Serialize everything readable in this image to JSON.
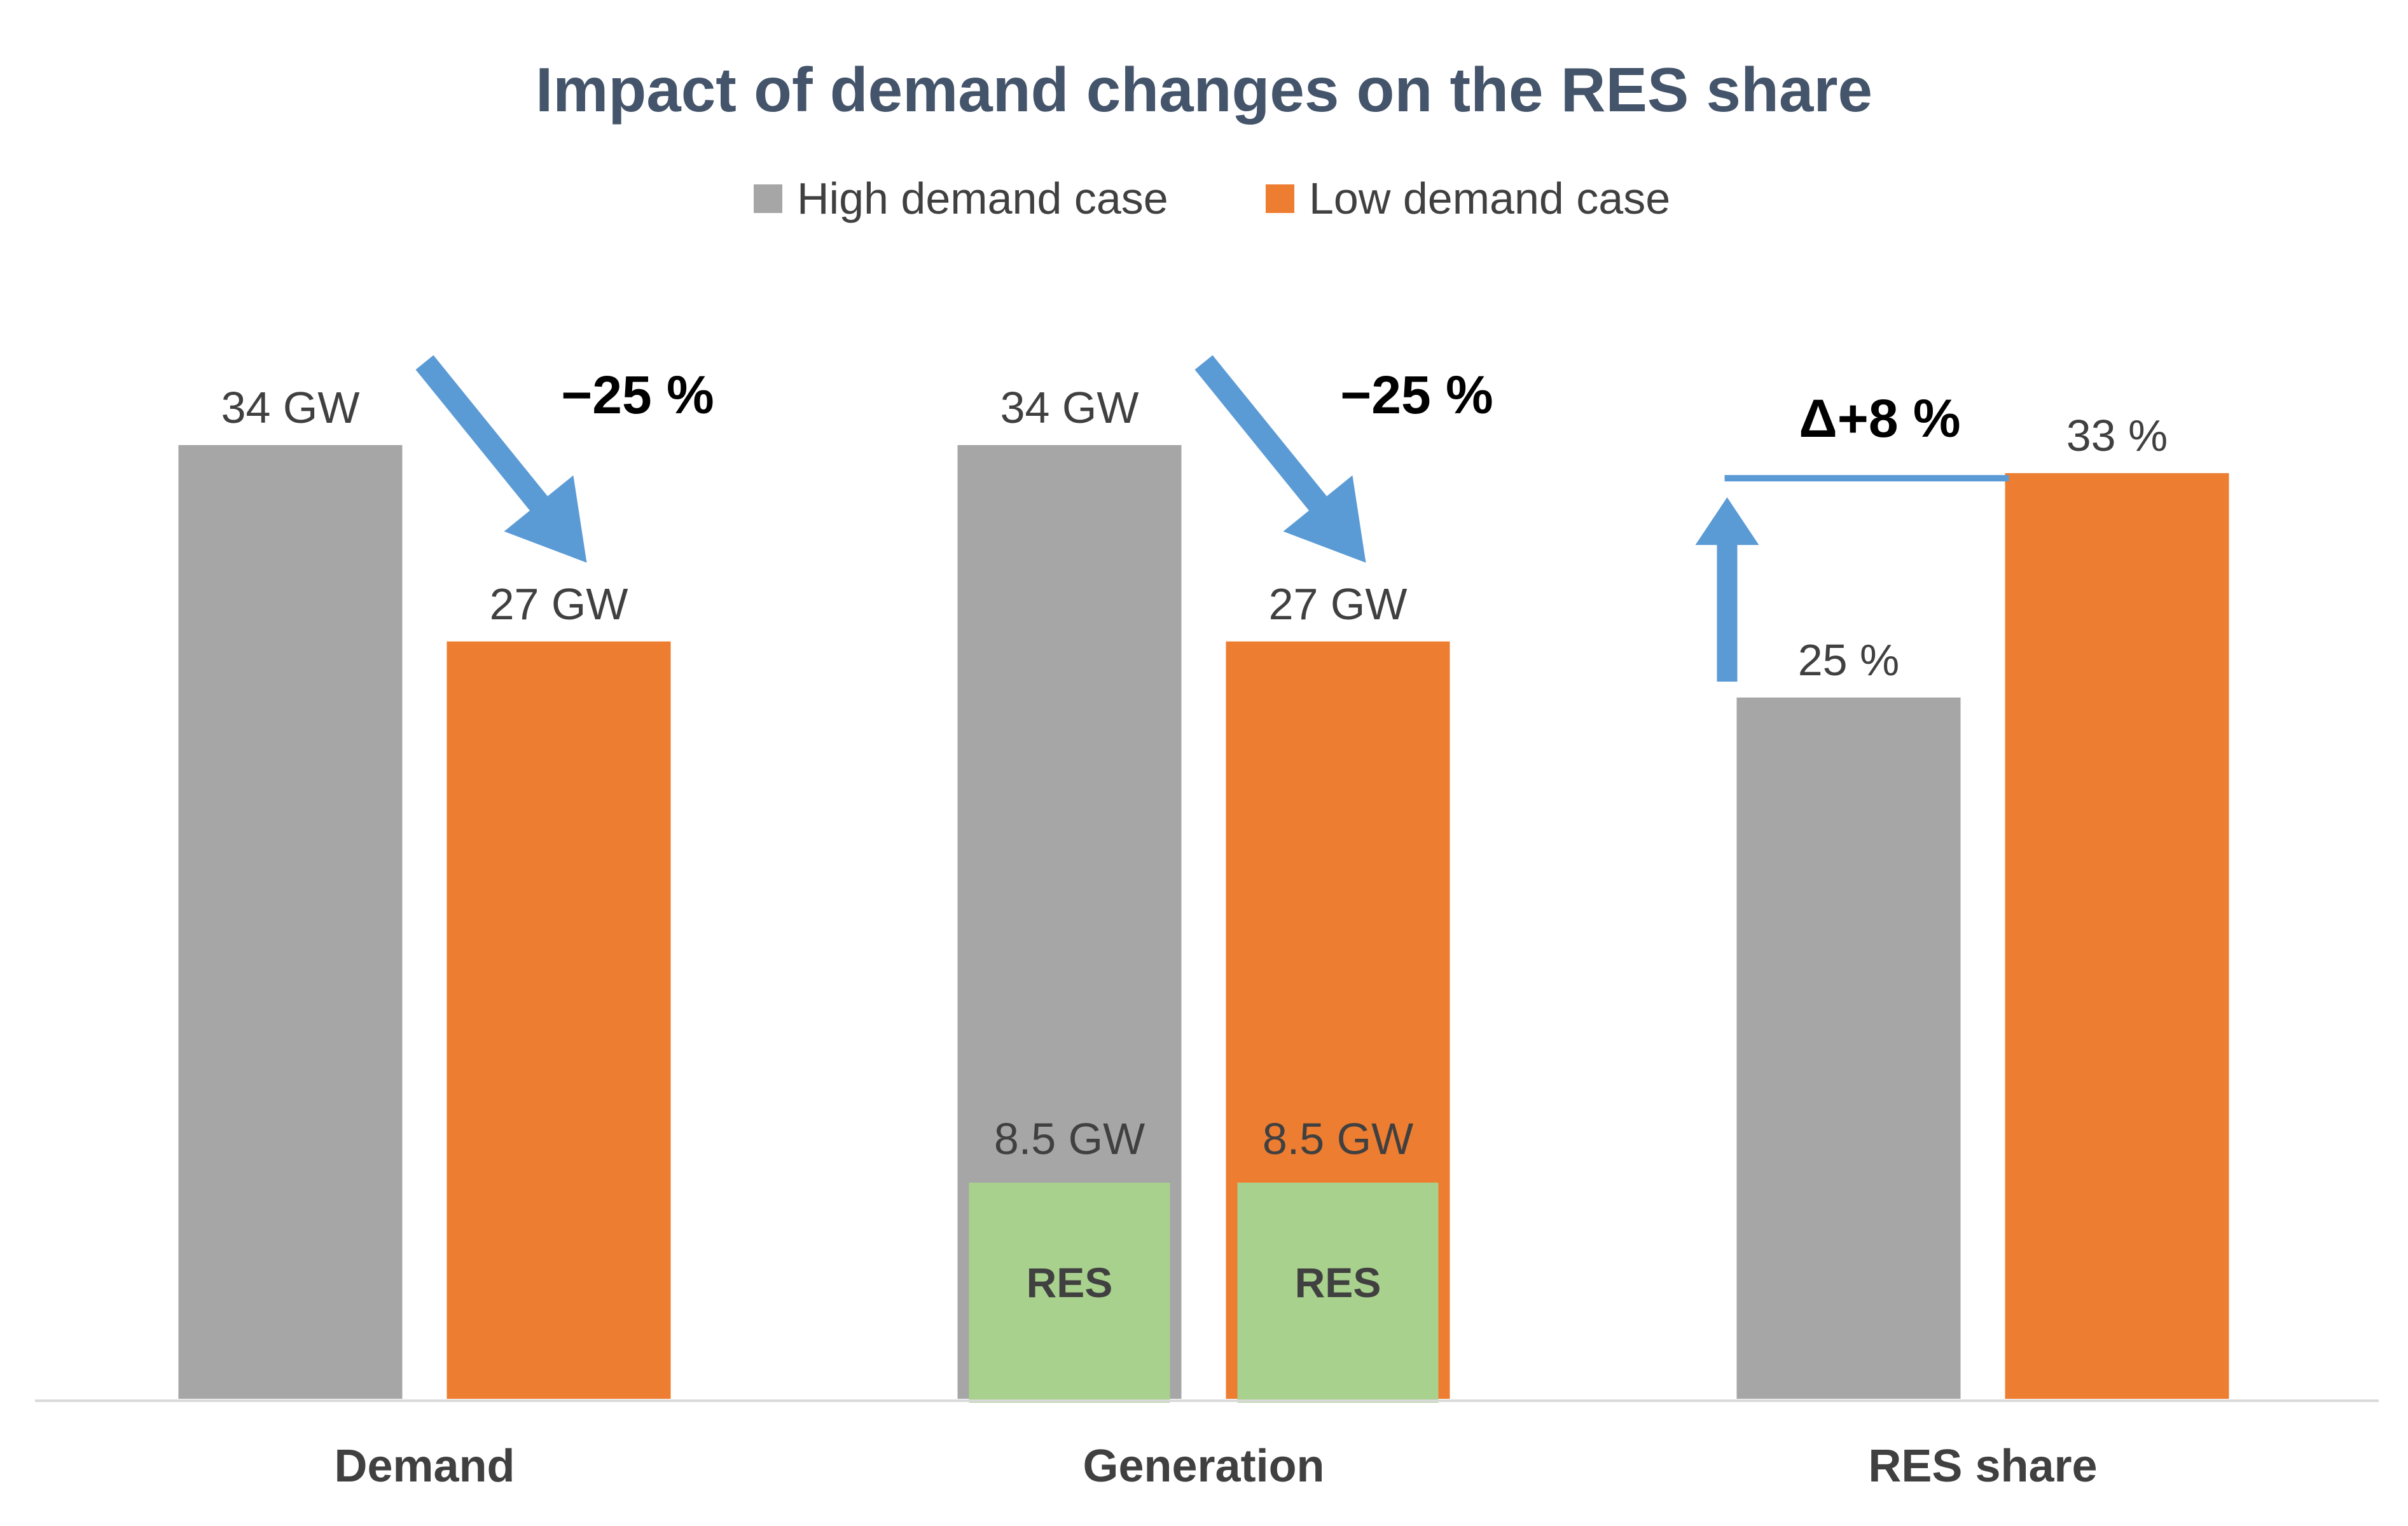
{
  "chart_data": {
    "type": "bar",
    "title": "Impact of demand changes on the RES share",
    "categories": [
      "Demand",
      "Generation",
      "RES share"
    ],
    "series": [
      {
        "name": "High demand case",
        "color": "#a6a6a6",
        "values": [
          34,
          34,
          25
        ],
        "labels": [
          "34 GW",
          "34 GW",
          "25 %"
        ]
      },
      {
        "name": "Low demand case",
        "color": "#ed7d31",
        "values": [
          27,
          27,
          33
        ],
        "labels": [
          "27 GW",
          "27 GW",
          "33 %"
        ]
      }
    ],
    "overlay_segments": [
      {
        "category": "Generation",
        "series": "High demand case",
        "value": 8.5,
        "value_label": "8.5 GW",
        "label": "RES",
        "color": "#a9d18e"
      },
      {
        "category": "Generation",
        "series": "Low demand case",
        "value": 8.5,
        "value_label": "8.5 GW",
        "label": "RES",
        "color": "#a9d18e"
      }
    ],
    "annotations": [
      {
        "category": "Demand",
        "text": "−25 %",
        "arrow": "down"
      },
      {
        "category": "Generation",
        "text": "−25 %",
        "arrow": "down"
      },
      {
        "category": "RES share",
        "text": "Δ+8 %",
        "arrow": "up"
      }
    ],
    "ylim": [
      0,
      40
    ],
    "xlabel": "",
    "ylabel": "",
    "grid": false,
    "legend_position": "top-center",
    "annotation_color": "#5b9bd5",
    "title_color": "#44546a",
    "text_color": "#404040"
  }
}
